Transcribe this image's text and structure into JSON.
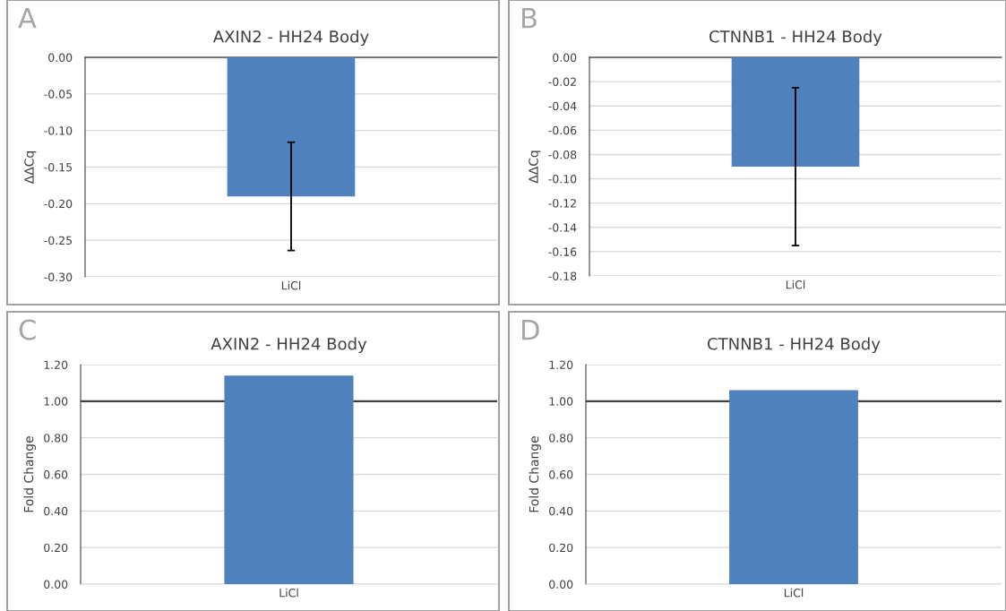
{
  "chart_data": [
    {
      "type": "bar",
      "title": "AXIN2 - HH24 Body",
      "ylabel": "ΔΔCq",
      "categories": [
        "LiCl"
      ],
      "values": [
        -0.19
      ],
      "errors": [
        0.074
      ],
      "color": "#4f81bd",
      "ylim": [
        -0.3,
        0
      ],
      "yticks": [
        {
          "value": -0.3,
          "label": "-0.30"
        },
        {
          "value": -0.25,
          "label": "-0.25"
        },
        {
          "value": -0.2,
          "label": "-0.20"
        },
        {
          "value": -0.15,
          "label": "-0.15"
        },
        {
          "value": -0.1,
          "label": "-0.10"
        },
        {
          "value": -0.05,
          "label": "-0.05"
        },
        {
          "value": 0,
          "label": "0.00"
        }
      ],
      "grid": "y",
      "annotations": [
        "A"
      ]
    },
    {
      "type": "bar",
      "title": "CTNNB1 - HH24 Body",
      "ylabel": "ΔΔCq",
      "categories": [
        "LiCl"
      ],
      "values": [
        -0.09
      ],
      "errors": [
        0.065
      ],
      "color": "#4f81bd",
      "ylim": [
        -0.18,
        0
      ],
      "yticks": [
        {
          "value": -0.18,
          "label": "-0.18"
        },
        {
          "value": -0.16,
          "label": "-0.16"
        },
        {
          "value": -0.14,
          "label": "-0.14"
        },
        {
          "value": -0.12,
          "label": "-0.12"
        },
        {
          "value": -0.1,
          "label": "-0.10"
        },
        {
          "value": -0.08,
          "label": "-0.08"
        },
        {
          "value": -0.06,
          "label": "-0.06"
        },
        {
          "value": -0.04,
          "label": "-0.04"
        },
        {
          "value": -0.02,
          "label": "-0.02"
        },
        {
          "value": 0,
          "label": "0.00"
        }
      ],
      "grid": "y",
      "annotations": [
        "B"
      ]
    },
    {
      "type": "bar",
      "title": "AXIN2 - HH24 Body",
      "ylabel": "Fold Change",
      "categories": [
        "LiCl"
      ],
      "values": [
        1.14
      ],
      "color": "#4f81bd",
      "ylim": [
        0,
        1.2
      ],
      "yticks": [
        {
          "value": 0,
          "label": "0.00"
        },
        {
          "value": 0.2,
          "label": "0.20"
        },
        {
          "value": 0.4,
          "label": "0.40"
        },
        {
          "value": 0.6,
          "label": "0.60"
        },
        {
          "value": 0.8,
          "label": "0.80"
        },
        {
          "value": 1.0,
          "label": "1.00"
        },
        {
          "value": 1.2,
          "label": "1.20"
        }
      ],
      "grid": "y",
      "ref_lines": [
        {
          "axis": "y",
          "value": 1.0,
          "color": "#404040"
        }
      ],
      "annotations": [
        "C"
      ]
    },
    {
      "type": "bar",
      "title": "CTNNB1 - HH24 Body",
      "ylabel": "Fold Change",
      "categories": [
        "LiCl"
      ],
      "values": [
        1.06
      ],
      "color": "#4f81bd",
      "ylim": [
        0,
        1.2
      ],
      "yticks": [
        {
          "value": 0,
          "label": "0.00"
        },
        {
          "value": 0.2,
          "label": "0.20"
        },
        {
          "value": 0.4,
          "label": "0.40"
        },
        {
          "value": 0.6,
          "label": "0.60"
        },
        {
          "value": 0.8,
          "label": "0.80"
        },
        {
          "value": 1.0,
          "label": "1.00"
        },
        {
          "value": 1.2,
          "label": "1.20"
        }
      ],
      "grid": "y",
      "ref_lines": [
        {
          "axis": "y",
          "value": 1.0,
          "color": "#404040"
        }
      ],
      "annotations": [
        "D"
      ]
    }
  ]
}
